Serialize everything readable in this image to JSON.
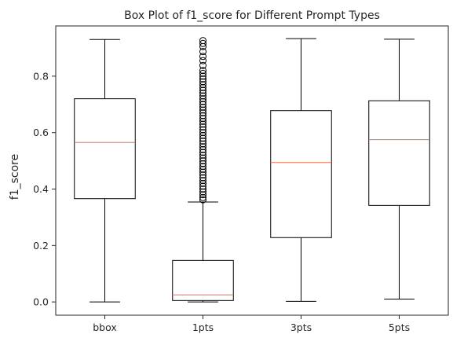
{
  "chart_data": {
    "type": "box",
    "title": "Box Plot of f1_score for Different Prompt Types",
    "xlabel": "",
    "ylabel": "f1_score",
    "categories": [
      "bbox",
      "1pts",
      "3pts",
      "5pts"
    ],
    "ylim": [
      -0.047,
      0.978
    ],
    "yticks": [
      0.0,
      0.2,
      0.4,
      0.6,
      0.8
    ],
    "ytick_labels": [
      "0.0",
      "0.2",
      "0.4",
      "0.6",
      "0.8"
    ],
    "grid": false,
    "legend": "none",
    "boxes": [
      {
        "category": "bbox",
        "whisker_low": 0.0,
        "q1": 0.366,
        "median": 0.565,
        "q3": 0.72,
        "whisker_high": 0.93,
        "outliers": []
      },
      {
        "category": "1pts",
        "whisker_low": 0.0,
        "q1": 0.005,
        "median": 0.025,
        "q3": 0.147,
        "whisker_high": 0.354,
        "outliers": [
          0.926,
          0.916,
          0.905,
          0.887,
          0.87,
          0.855,
          0.838,
          0.82,
          0.81,
          0.8,
          0.79,
          0.78,
          0.77,
          0.76,
          0.75,
          0.74,
          0.73,
          0.72,
          0.71,
          0.7,
          0.69,
          0.68,
          0.67,
          0.66,
          0.65,
          0.64,
          0.63,
          0.62,
          0.61,
          0.6,
          0.59,
          0.58,
          0.57,
          0.56,
          0.55,
          0.54,
          0.53,
          0.52,
          0.51,
          0.5,
          0.49,
          0.48,
          0.47,
          0.46,
          0.45,
          0.44,
          0.43,
          0.42,
          0.41,
          0.4,
          0.39,
          0.38,
          0.37,
          0.362
        ]
      },
      {
        "category": "3pts",
        "whisker_low": 0.002,
        "q1": 0.228,
        "median": 0.494,
        "q3": 0.678,
        "whisker_high": 0.933,
        "outliers": []
      },
      {
        "category": "5pts",
        "whisker_low": 0.01,
        "q1": 0.342,
        "median": 0.575,
        "q3": 0.713,
        "whisker_high": 0.931,
        "outliers": []
      }
    ],
    "colors": {
      "box": "#000000",
      "median": "#e8704d",
      "text": "#262626",
      "axis": "#262626"
    }
  }
}
